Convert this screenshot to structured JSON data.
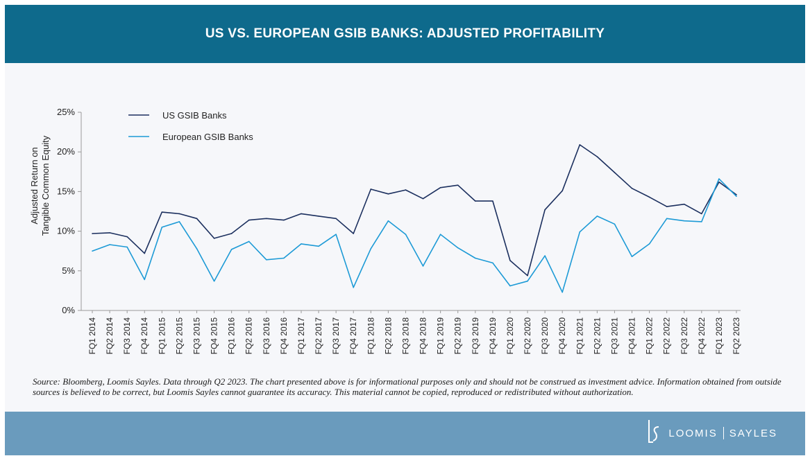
{
  "header": {
    "title": "US VS. EUROPEAN GSIB BANKS: ADJUSTED PROFITABILITY"
  },
  "chart_data": {
    "type": "line",
    "title": "US VS. EUROPEAN GSIB BANKS: ADJUSTED PROFITABILITY",
    "ylabel_line1": "Adjusted Return on",
    "ylabel_line2": "Tangible Common Equity",
    "xlabel": "",
    "ylim": [
      0,
      25
    ],
    "yticks": [
      "0%",
      "5%",
      "10%",
      "15%",
      "20%",
      "25%"
    ],
    "grid": false,
    "legend_position": "top-left",
    "categories": [
      "FQ1 2014",
      "FQ2 2014",
      "FQ3 2014",
      "FQ4 2014",
      "FQ1 2015",
      "FQ2 2015",
      "FQ3 2015",
      "FQ4 2015",
      "FQ1 2016",
      "FQ2 2016",
      "FQ3 2016",
      "FQ4 2016",
      "FQ1 2017",
      "FQ2 2017",
      "FQ3 2017",
      "FQ4 2017",
      "FQ1 2018",
      "FQ2 2018",
      "FQ3 2018",
      "FQ4 2018",
      "FQ1 2019",
      "FQ2 2019",
      "FQ3 2019",
      "FQ4 2019",
      "FQ1 2020",
      "FQ2 2020",
      "FQ3 2020",
      "FQ4 2020",
      "FQ1 2021",
      "FQ2 2021",
      "FQ3 2021",
      "FQ4 2021",
      "FQ1 2022",
      "FQ2 2022",
      "FQ3 2022",
      "FQ4 2022",
      "FQ1 2023",
      "FQ2 2023"
    ],
    "series": [
      {
        "name": "US GSIB Banks",
        "color": "#1b2f5e",
        "values": [
          9.7,
          9.8,
          9.3,
          7.2,
          12.4,
          12.2,
          11.6,
          9.1,
          9.7,
          11.4,
          11.6,
          11.4,
          12.2,
          11.9,
          11.6,
          9.7,
          15.3,
          14.7,
          15.2,
          14.1,
          15.5,
          15.8,
          13.8,
          13.8,
          6.3,
          4.4,
          12.7,
          15.1,
          20.9,
          19.4,
          17.4,
          15.4,
          14.3,
          13.1,
          13.4,
          12.2,
          16.2,
          14.6
        ]
      },
      {
        "name": "European GSIB Banks",
        "color": "#1c9ad6",
        "values": [
          7.5,
          8.3,
          8.0,
          3.9,
          10.5,
          11.2,
          7.8,
          3.7,
          7.7,
          8.7,
          6.4,
          6.6,
          8.4,
          8.1,
          9.6,
          2.9,
          7.8,
          11.3,
          9.6,
          5.6,
          9.6,
          7.9,
          6.6,
          6.0,
          3.1,
          3.7,
          6.9,
          2.3,
          9.9,
          11.9,
          10.9,
          6.8,
          8.4,
          11.6,
          11.3,
          11.2,
          16.6,
          14.4
        ]
      }
    ]
  },
  "source_text": "Source: Bloomberg, Loomis Sayles. Data through Q2 2023. The chart presented above is for informational purposes only and should not be construed as investment advice. Information obtained from outside sources is believed to be correct, but Loomis Sayles cannot guarantee its accuracy. This material cannot be copied, reproduced or redistributed without authorization.",
  "footer": {
    "logo_left": "LOOMIS",
    "logo_right": "SAYLES",
    "logo_icon": "loomis-sayles-monogram-icon"
  },
  "colors": {
    "header_bg": "#0e6a8c",
    "footer_bg": "#6a9bbd",
    "panel_bg": "#f6f7fa"
  }
}
